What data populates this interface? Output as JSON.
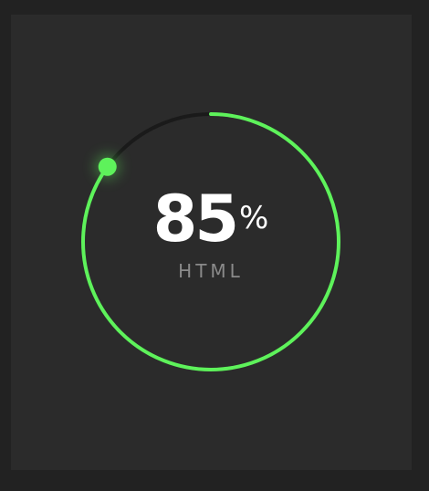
{
  "progress": {
    "value": "85",
    "unit": "%",
    "fraction": 0.85,
    "label": "HTML"
  },
  "colors": {
    "accent": "#5ef25b",
    "track": "#1a1a1a",
    "background": "#2b2b2b",
    "frame": "#222222",
    "label": "#8a8a8a"
  }
}
